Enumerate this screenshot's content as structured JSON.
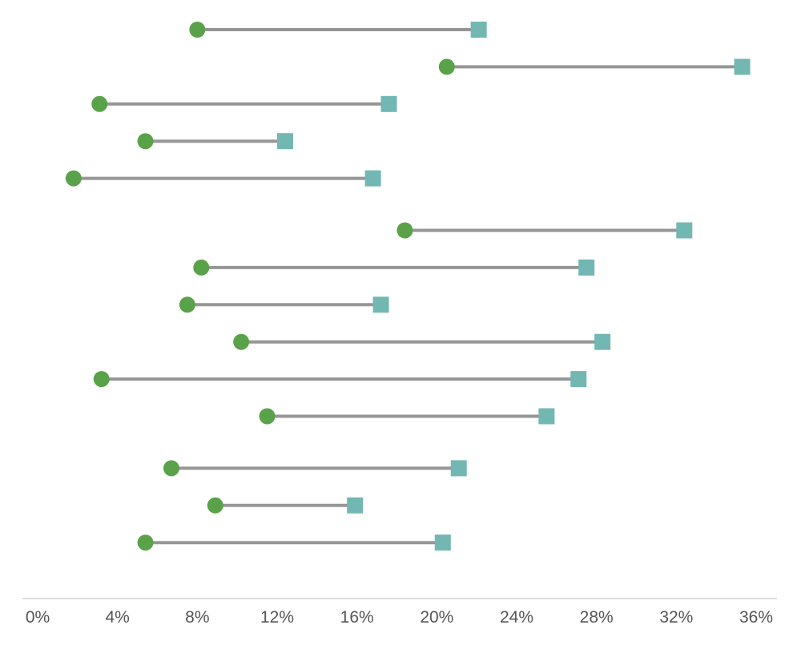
{
  "chart_data": {
    "type": "dumbbell",
    "title": "",
    "xlabel": "",
    "ylabel": "",
    "x_axis": {
      "min": 0,
      "max": 36,
      "ticks": [
        0,
        4,
        8,
        12,
        16,
        20,
        24,
        28,
        32,
        36
      ],
      "tick_labels": [
        "0%",
        "4%",
        "8%",
        "12%",
        "16%",
        "20%",
        "24%",
        "28%",
        "32%",
        "36%"
      ]
    },
    "grid": false,
    "legend": "none",
    "start_marker": {
      "shape": "circle",
      "color": "#5aa24a"
    },
    "end_marker": {
      "shape": "square",
      "color": "#73b7b3"
    },
    "connector_color": "#969696",
    "axis_color": "#c8c8c8",
    "tick_label_color": "#555555",
    "groups": [
      {
        "rows": [
          {
            "start": 8.0,
            "end": 22.1
          },
          {
            "start": 20.5,
            "end": 35.3
          },
          {
            "start": 3.1,
            "end": 17.6
          },
          {
            "start": 5.4,
            "end": 12.4
          },
          {
            "start": 1.8,
            "end": 16.8
          }
        ]
      },
      {
        "rows": [
          {
            "start": 18.4,
            "end": 32.4
          },
          {
            "start": 8.2,
            "end": 27.5
          },
          {
            "start": 7.5,
            "end": 17.2
          },
          {
            "start": 10.2,
            "end": 28.3
          },
          {
            "start": 3.2,
            "end": 27.1
          },
          {
            "start": 11.5,
            "end": 25.5
          }
        ]
      },
      {
        "rows": [
          {
            "start": 6.7,
            "end": 21.1
          },
          {
            "start": 8.9,
            "end": 15.9
          },
          {
            "start": 5.4,
            "end": 20.3
          }
        ]
      }
    ]
  }
}
